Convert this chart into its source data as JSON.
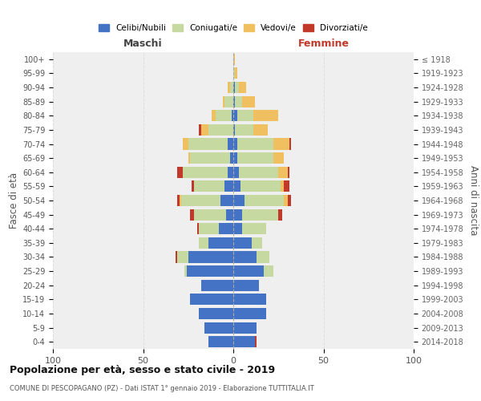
{
  "age_groups": [
    "0-4",
    "5-9",
    "10-14",
    "15-19",
    "20-24",
    "25-29",
    "30-34",
    "35-39",
    "40-44",
    "45-49",
    "50-54",
    "55-59",
    "60-64",
    "65-69",
    "70-74",
    "75-79",
    "80-84",
    "85-89",
    "90-94",
    "95-99",
    "100+"
  ],
  "birth_years": [
    "2014-2018",
    "2009-2013",
    "2004-2008",
    "1999-2003",
    "1994-1998",
    "1989-1993",
    "1984-1988",
    "1979-1983",
    "1974-1978",
    "1969-1973",
    "1964-1968",
    "1959-1963",
    "1954-1958",
    "1949-1953",
    "1944-1948",
    "1939-1943",
    "1934-1938",
    "1929-1933",
    "1924-1928",
    "1919-1923",
    "≤ 1918"
  ],
  "colors": {
    "celibi": "#4472C4",
    "coniugati": "#C5D9A0",
    "vedovi": "#F0C060",
    "divorziati": "#C0392B"
  },
  "males": {
    "celibi": [
      14,
      16,
      19,
      24,
      18,
      26,
      25,
      14,
      8,
      4,
      7,
      5,
      3,
      2,
      3,
      0,
      1,
      0,
      0,
      0,
      0
    ],
    "coniugati": [
      0,
      0,
      0,
      0,
      0,
      1,
      6,
      5,
      11,
      18,
      22,
      17,
      25,
      22,
      22,
      14,
      9,
      5,
      2,
      0,
      0
    ],
    "vedovi": [
      0,
      0,
      0,
      0,
      0,
      0,
      0,
      0,
      0,
      0,
      1,
      0,
      0,
      1,
      3,
      4,
      2,
      1,
      1,
      0,
      0
    ],
    "divorziati": [
      0,
      0,
      0,
      0,
      0,
      0,
      1,
      0,
      1,
      2,
      1,
      1,
      3,
      0,
      0,
      1,
      0,
      0,
      0,
      0,
      0
    ]
  },
  "females": {
    "celibi": [
      12,
      13,
      18,
      18,
      14,
      17,
      13,
      10,
      5,
      5,
      6,
      4,
      3,
      2,
      2,
      1,
      2,
      1,
      1,
      0,
      0
    ],
    "coniugati": [
      0,
      0,
      0,
      0,
      0,
      5,
      7,
      6,
      13,
      20,
      22,
      22,
      22,
      20,
      20,
      10,
      9,
      4,
      2,
      1,
      0
    ],
    "vedovi": [
      0,
      0,
      0,
      0,
      0,
      0,
      0,
      0,
      0,
      0,
      2,
      2,
      5,
      6,
      9,
      8,
      14,
      7,
      4,
      1,
      1
    ],
    "divorziati": [
      1,
      0,
      0,
      0,
      0,
      0,
      0,
      0,
      0,
      2,
      2,
      3,
      1,
      0,
      1,
      0,
      0,
      0,
      0,
      0,
      0
    ]
  },
  "title": "Popolazione per età, sesso e stato civile - 2019",
  "subtitle": "COMUNE DI PESCOPAGANO (PZ) - Dati ISTAT 1° gennaio 2019 - Elaborazione TUTTITALIA.IT",
  "xlabel_left": "Maschi",
  "xlabel_right": "Femmine",
  "ylabel_left": "Fasce di età",
  "ylabel_right": "Anni di nascita",
  "xlim": 100,
  "legend_labels": [
    "Celibi/Nubili",
    "Coniugati/e",
    "Vedovi/e",
    "Divorziati/e"
  ],
  "bg_color": "#FFFFFF",
  "plot_bg": "#EFEFEF",
  "grid_color": "#DDDDDD"
}
